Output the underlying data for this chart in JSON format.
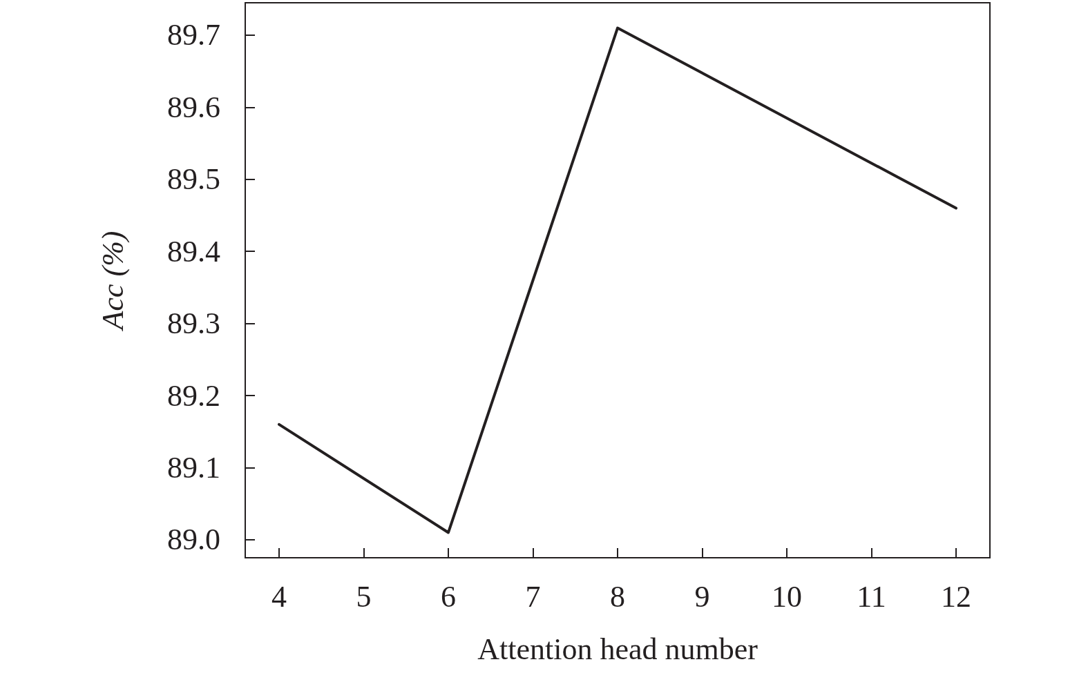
{
  "chart_data": {
    "type": "line",
    "xlabel": "Attention head number",
    "ylabel": "Acc (%)",
    "x": [
      4,
      6,
      8,
      12
    ],
    "series": [
      {
        "color": "#231f20",
        "values": [
          89.16,
          89.01,
          89.71,
          89.46
        ]
      }
    ],
    "xlim": [
      3.6,
      12.4
    ],
    "xticks": [
      4,
      5,
      6,
      7,
      8,
      9,
      10,
      11,
      12
    ],
    "ylim": [
      88.975,
      89.745
    ],
    "yticks": [
      {
        "value": 89.0,
        "label": "89.0"
      },
      89.1,
      89.2,
      89.3,
      89.4,
      89.5,
      89.6,
      89.7
    ],
    "grid": false,
    "marker": "none",
    "line_style": "solid"
  }
}
